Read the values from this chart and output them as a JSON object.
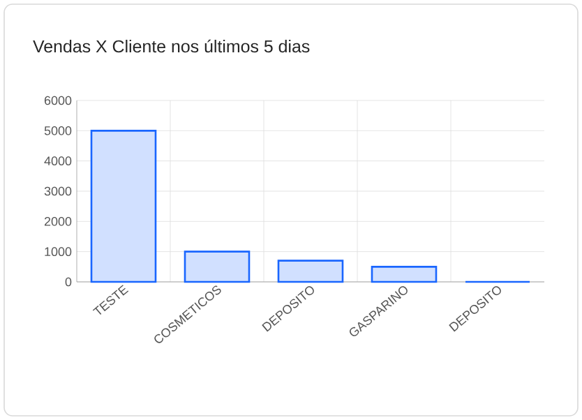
{
  "chart_data": {
    "type": "bar",
    "title": "Vendas X Cliente nos últimos 5 dias",
    "categories": [
      "TESTE",
      "COSMETICOS",
      "DEPOSITO",
      "GASPARINO",
      "DEPOSITO"
    ],
    "values": [
      5000,
      1000,
      700,
      500,
      0
    ],
    "color": "#1a66ff",
    "ylim": [
      0,
      6000
    ],
    "yticks": [
      0,
      1000,
      2000,
      3000,
      4000,
      5000,
      6000
    ],
    "grid": true
  }
}
